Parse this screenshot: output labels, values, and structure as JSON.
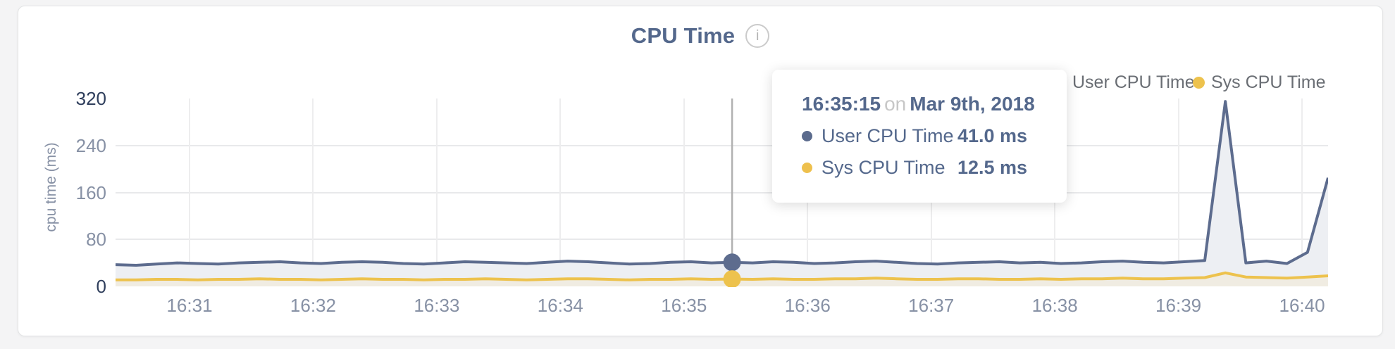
{
  "card": {
    "info_icon": "i"
  },
  "tooltip": {
    "time": "16:35:15",
    "conjunction": "on",
    "date": "Mar 9th, 2018",
    "rows": [
      {
        "label": "User CPU Time",
        "value": "41.0 ms",
        "color": "#5b6b8d"
      },
      {
        "label": "Sys CPU Time",
        "value": "12.5 ms",
        "color": "#eec04d"
      }
    ]
  },
  "chart_data": {
    "type": "area",
    "title": "CPU Time",
    "ylabel": "cpu time (ms)",
    "xlabel": "",
    "ylim": [
      0,
      320
    ],
    "y_ticks": [
      0,
      80,
      160,
      240,
      320
    ],
    "x_tick_labels": [
      "16:31",
      "16:32",
      "16:33",
      "16:34",
      "16:35",
      "16:36",
      "16:37",
      "16:38",
      "16:39",
      "16:40"
    ],
    "grid": true,
    "legend_position": "top-right",
    "hover_index": 30,
    "hover_line_color": "#b1b1b1",
    "series": [
      {
        "name": "User CPU Time",
        "color": "#5d6c8e",
        "fill": "#edeff3",
        "values": [
          37,
          36,
          38,
          40,
          39,
          38,
          40,
          41,
          42,
          40,
          39,
          41,
          42,
          41,
          39,
          38,
          40,
          42,
          41,
          40,
          39,
          41,
          43,
          42,
          40,
          38,
          39,
          41,
          42,
          40,
          41,
          40,
          42,
          41,
          39,
          40,
          42,
          43,
          41,
          39,
          38,
          40,
          41,
          42,
          40,
          41,
          39,
          40,
          42,
          43,
          41,
          40,
          42,
          44,
          315,
          40,
          43,
          39,
          58,
          185
        ]
      },
      {
        "name": "Sys CPU Time",
        "color": "#edc24d",
        "fill": "#f0ece2",
        "values": [
          11,
          11,
          12,
          12,
          11,
          12,
          12,
          13,
          12,
          12,
          11,
          12,
          13,
          12,
          12,
          11,
          12,
          12,
          13,
          12,
          11,
          12,
          13,
          13,
          12,
          11,
          12,
          12,
          13,
          12,
          12.5,
          12,
          13,
          12,
          12,
          13,
          13,
          14,
          13,
          12,
          12,
          13,
          13,
          12,
          12,
          13,
          12,
          13,
          13,
          14,
          13,
          13,
          14,
          15,
          23,
          16,
          15,
          14,
          16,
          18
        ]
      }
    ]
  }
}
